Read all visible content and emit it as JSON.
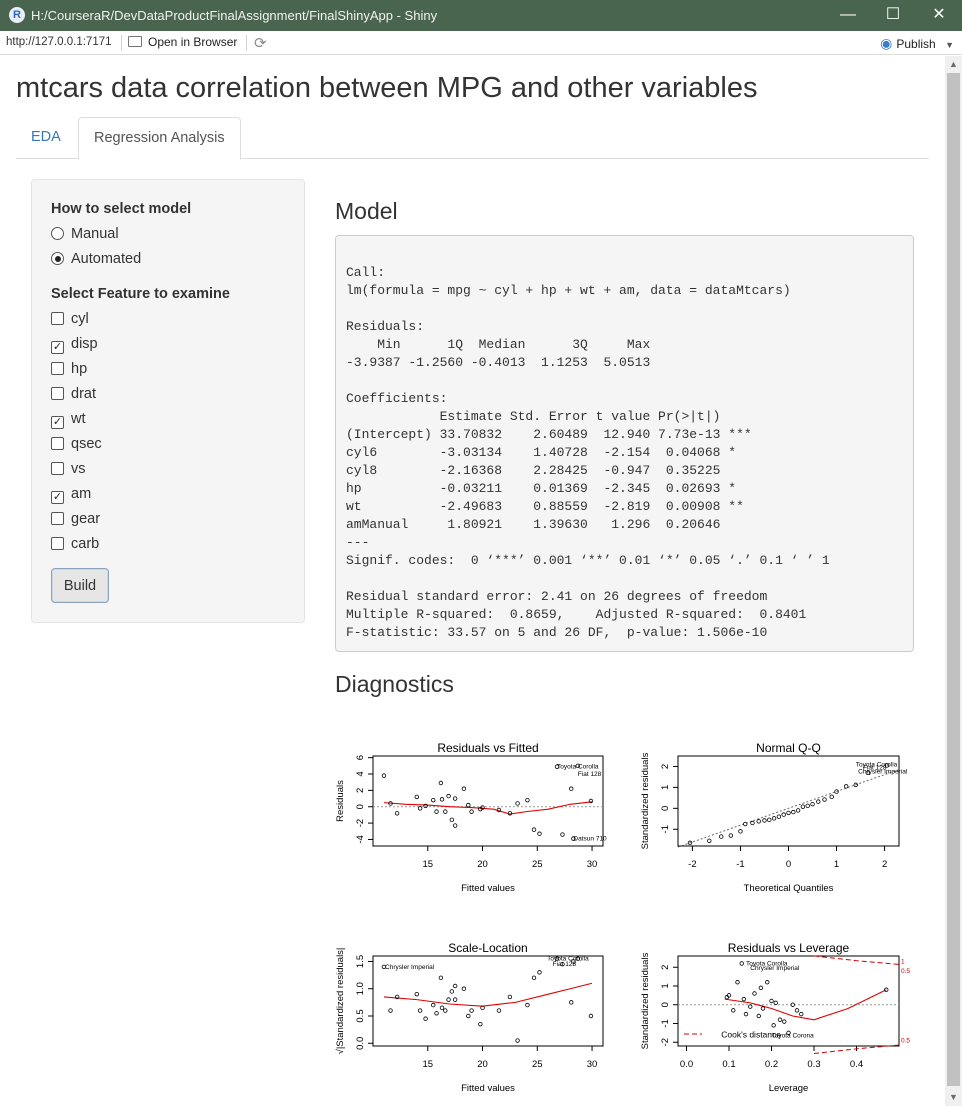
{
  "window": {
    "title": "H:/CourseraR/DevDataProductFinalAssignment/FinalShinyApp - Shiny",
    "logo": "R",
    "minimize": "—",
    "maximize": "☐",
    "close": "✕"
  },
  "toolbar": {
    "url": "http://127.0.0.1:7171",
    "open_browser": "Open in Browser",
    "publish": "Publish"
  },
  "page": {
    "title": "mtcars data correlation between MPG and other variables",
    "tabs": [
      {
        "label": "EDA",
        "active": false
      },
      {
        "label": "Regression Analysis",
        "active": true
      }
    ]
  },
  "sidebar": {
    "model_label": "How to select model",
    "model_options": [
      {
        "label": "Manual",
        "selected": false
      },
      {
        "label": "Automated",
        "selected": true
      }
    ],
    "feature_label": "Select Feature to examine",
    "features": [
      {
        "label": "cyl",
        "checked": false
      },
      {
        "label": "disp",
        "checked": true
      },
      {
        "label": "hp",
        "checked": false
      },
      {
        "label": "drat",
        "checked": false
      },
      {
        "label": "wt",
        "checked": true
      },
      {
        "label": "qsec",
        "checked": false
      },
      {
        "label": "vs",
        "checked": false
      },
      {
        "label": "am",
        "checked": true
      },
      {
        "label": "gear",
        "checked": false
      },
      {
        "label": "carb",
        "checked": false
      }
    ],
    "build_label": "Build"
  },
  "main": {
    "model_heading": "Model",
    "model_output": "\nCall:\nlm(formula = mpg ~ cyl + hp + wt + am, data = dataMtcars)\n\nResiduals:\n    Min      1Q  Median      3Q     Max \n-3.9387 -1.2560 -0.4013  1.1253  5.0513 \n\nCoefficients:\n            Estimate Std. Error t value Pr(>|t|)    \n(Intercept) 33.70832    2.60489  12.940 7.73e-13 ***\ncyl6        -3.03134    1.40728  -2.154  0.04068 *  \ncyl8        -2.16368    2.28425  -0.947  0.35225    \nhp          -0.03211    0.01369  -2.345  0.02693 *  \nwt          -2.49683    0.88559  -2.819  0.00908 ** \namManual     1.80921    1.39630   1.296  0.20646    \n---\nSignif. codes:  0 ‘***’ 0.001 ‘**’ 0.01 ‘*’ 0.05 ‘.’ 0.1 ‘ ’ 1\n\nResidual standard error: 2.41 on 26 degrees of freedom\nMultiple R-squared:  0.8659,\tAdjusted R-squared:  0.8401 \nF-statistic: 33.57 on 5 and 26 DF,  p-value: 1.506e-10",
    "diagnostics_heading": "Diagnostics"
  },
  "chart_data": [
    {
      "type": "scatter",
      "title": "Residuals vs Fitted",
      "xlabel": "Fitted values",
      "ylabel": "Residuals",
      "xlim": [
        10,
        31
      ],
      "ylim": [
        -4.8,
        6.2
      ],
      "xticks": [
        15,
        20,
        25,
        30
      ],
      "yticks": [
        -4,
        -2,
        0,
        2,
        4,
        6
      ],
      "hline": 0,
      "points": [
        [
          11,
          3.8
        ],
        [
          11.6,
          0.4
        ],
        [
          12.2,
          -0.8
        ],
        [
          14,
          1.2
        ],
        [
          14.3,
          -0.2
        ],
        [
          14.8,
          0.1
        ],
        [
          15.5,
          0.8
        ],
        [
          15.8,
          -0.6
        ],
        [
          16.2,
          2.9
        ],
        [
          16.3,
          0.9
        ],
        [
          16.6,
          -0.6
        ],
        [
          16.9,
          1.3
        ],
        [
          17.2,
          -1.6
        ],
        [
          17.5,
          -2.3
        ],
        [
          17.5,
          1
        ],
        [
          18.3,
          2.2
        ],
        [
          18.7,
          0.2
        ],
        [
          19,
          -0.6
        ],
        [
          19.8,
          -0.3
        ],
        [
          20,
          -0.1
        ],
        [
          21.5,
          -0.4
        ],
        [
          22.5,
          -0.8
        ],
        [
          23.2,
          0.4
        ],
        [
          24.1,
          0.8
        ],
        [
          24.7,
          -2.8
        ],
        [
          25.2,
          -3.3
        ],
        [
          26.8,
          4.9
        ],
        [
          27.3,
          -3.4
        ],
        [
          28.1,
          2.2
        ],
        [
          28.3,
          -3.9
        ],
        [
          28.7,
          5
        ],
        [
          29.9,
          0.7
        ]
      ],
      "smooth": [
        [
          11,
          0.5
        ],
        [
          13,
          0.3
        ],
        [
          15,
          0.2
        ],
        [
          17,
          0
        ],
        [
          19,
          -0.1
        ],
        [
          21,
          -0.3
        ],
        [
          22.5,
          -0.9
        ],
        [
          24,
          -0.6
        ],
        [
          26,
          -0.3
        ],
        [
          28,
          0.3
        ],
        [
          30,
          0.6
        ]
      ],
      "labels": [
        {
          "text": "Toyota Corolla",
          "at": [
            26.8,
            4.9
          ]
        },
        {
          "text": "Fiat 128",
          "at": [
            28.7,
            4.0
          ]
        },
        {
          "text": "Datsun 710",
          "at": [
            28.3,
            -3.9
          ]
        }
      ]
    },
    {
      "type": "scatter",
      "title": "Normal Q-Q",
      "xlabel": "Theoretical Quantiles",
      "ylabel": "Standardized residuals",
      "xlim": [
        -2.3,
        2.3
      ],
      "ylim": [
        -1.8,
        2.5
      ],
      "xticks": [
        -2,
        -1,
        0,
        1,
        2
      ],
      "yticks": [
        -1,
        0,
        1,
        2
      ],
      "refline": [
        [
          -2.3,
          -1.85
        ],
        [
          2.3,
          1.85
        ]
      ],
      "points": [
        [
          -2.05,
          -1.65
        ],
        [
          -1.65,
          -1.55
        ],
        [
          -1.4,
          -1.35
        ],
        [
          -1.2,
          -1.3
        ],
        [
          -1.0,
          -1.1
        ],
        [
          -0.9,
          -0.75
        ],
        [
          -0.75,
          -0.7
        ],
        [
          -0.62,
          -0.62
        ],
        [
          -0.5,
          -0.58
        ],
        [
          -0.4,
          -0.55
        ],
        [
          -0.3,
          -0.48
        ],
        [
          -0.2,
          -0.4
        ],
        [
          -0.1,
          -0.3
        ],
        [
          0,
          -0.22
        ],
        [
          0.1,
          -0.18
        ],
        [
          0.2,
          -0.1
        ],
        [
          0.3,
          0.08
        ],
        [
          0.4,
          0.12
        ],
        [
          0.5,
          0.2
        ],
        [
          0.62,
          0.32
        ],
        [
          0.75,
          0.42
        ],
        [
          0.9,
          0.55
        ],
        [
          1.0,
          0.8
        ],
        [
          1.2,
          1.05
        ],
        [
          1.4,
          1.12
        ],
        [
          1.65,
          1.7
        ],
        [
          2.05,
          2.05
        ]
      ],
      "labels": [
        {
          "text": "Toyota Corolla",
          "at": [
            1.4,
            2.1
          ]
        },
        {
          "text": "Fiat 128",
          "at": [
            1.55,
            1.95
          ]
        },
        {
          "text": "Chrysler Imperial",
          "at": [
            1.45,
            1.75
          ]
        }
      ]
    },
    {
      "type": "scatter",
      "title": "Scale-Location",
      "xlabel": "Fitted values",
      "ylabel": "√|Standardized residuals|",
      "xlim": [
        10,
        31
      ],
      "ylim": [
        -0.05,
        1.6
      ],
      "xticks": [
        15,
        20,
        25,
        30
      ],
      "yticks": [
        0.0,
        0.5,
        1.0,
        1.5
      ],
      "points": [
        [
          11,
          1.4
        ],
        [
          11.6,
          0.6
        ],
        [
          12.2,
          0.85
        ],
        [
          14,
          0.9
        ],
        [
          14.3,
          0.6
        ],
        [
          14.8,
          0.45
        ],
        [
          15.5,
          0.7
        ],
        [
          15.8,
          0.55
        ],
        [
          16.2,
          1.2
        ],
        [
          16.3,
          0.65
        ],
        [
          16.6,
          0.6
        ],
        [
          16.9,
          0.8
        ],
        [
          17.2,
          0.95
        ],
        [
          17.5,
          1.05
        ],
        [
          17.5,
          0.8
        ],
        [
          18.3,
          1.0
        ],
        [
          18.7,
          0.5
        ],
        [
          19,
          0.6
        ],
        [
          19.8,
          0.35
        ],
        [
          20,
          0.65
        ],
        [
          21.5,
          0.6
        ],
        [
          22.5,
          0.85
        ],
        [
          23.2,
          0.05
        ],
        [
          24.1,
          0.7
        ],
        [
          24.7,
          1.2
        ],
        [
          25.2,
          1.3
        ],
        [
          26.8,
          1.55
        ],
        [
          27.3,
          1.45
        ],
        [
          28.1,
          0.75
        ],
        [
          28.3,
          1.5
        ],
        [
          28.7,
          1.55
        ],
        [
          29.9,
          0.5
        ]
      ],
      "smooth": [
        [
          11,
          0.85
        ],
        [
          14,
          0.8
        ],
        [
          17,
          0.72
        ],
        [
          20,
          0.68
        ],
        [
          23,
          0.75
        ],
        [
          26,
          0.9
        ],
        [
          28,
          1.0
        ],
        [
          30,
          1.1
        ]
      ],
      "labels": [
        {
          "text": "Chrysler Imperial",
          "at": [
            11.1,
            1.4
          ]
        },
        {
          "text": "Toyota Corolla",
          "at": [
            25.9,
            1.55
          ]
        },
        {
          "text": "Fiat 128",
          "at": [
            26.4,
            1.45
          ]
        }
      ]
    },
    {
      "type": "scatter",
      "title": "Residuals vs Leverage",
      "xlabel": "Leverage",
      "ylabel": "Standardized residuals",
      "xlim": [
        -0.02,
        0.5
      ],
      "ylim": [
        -2.2,
        2.6
      ],
      "xticks": [
        0.0,
        0.1,
        0.2,
        0.3,
        0.4
      ],
      "yticks": [
        -2,
        -1,
        0,
        1,
        2
      ],
      "hline": 0,
      "points": [
        [
          0.095,
          0.4
        ],
        [
          0.1,
          0.5
        ],
        [
          0.11,
          -0.3
        ],
        [
          0.12,
          1.2
        ],
        [
          0.13,
          2.2
        ],
        [
          0.135,
          0.3
        ],
        [
          0.14,
          -0.5
        ],
        [
          0.15,
          -0.1
        ],
        [
          0.16,
          0.6
        ],
        [
          0.17,
          -0.6
        ],
        [
          0.175,
          0.9
        ],
        [
          0.18,
          -0.2
        ],
        [
          0.19,
          1.2
        ],
        [
          0.2,
          0.2
        ],
        [
          0.205,
          -1.1
        ],
        [
          0.21,
          0.1
        ],
        [
          0.22,
          -0.8
        ],
        [
          0.23,
          -0.9
        ],
        [
          0.24,
          -1.5
        ],
        [
          0.25,
          0.0
        ],
        [
          0.26,
          -0.3
        ],
        [
          0.27,
          -0.5
        ],
        [
          0.47,
          0.8
        ]
      ],
      "smooth": [
        [
          0.09,
          0.3
        ],
        [
          0.15,
          0.1
        ],
        [
          0.2,
          -0.2
        ],
        [
          0.25,
          -0.6
        ],
        [
          0.3,
          -0.8
        ],
        [
          0.38,
          -0.2
        ],
        [
          0.47,
          0.8
        ]
      ],
      "cooks_upper": [
        [
          0.3,
          2.6
        ],
        [
          0.4,
          2.35
        ],
        [
          0.5,
          2.15
        ]
      ],
      "cooks_lower": [
        [
          0.3,
          -2.6
        ],
        [
          0.4,
          -2.35
        ],
        [
          0.5,
          -2.15
        ]
      ],
      "labels": [
        {
          "text": "Toyota Corolla",
          "at": [
            0.14,
            2.2
          ]
        },
        {
          "text": "Chrysler Imperial",
          "at": [
            0.15,
            1.95
          ]
        },
        {
          "text": "Toyota Corona",
          "at": [
            0.2,
            -1.65
          ]
        },
        {
          "text": "Cook's distance",
          "at": [
            0.03,
            -1.65
          ]
        },
        {
          "text": "1",
          "at": [
            0.5,
            2.3
          ],
          "edge": true
        },
        {
          "text": "0.5",
          "at": [
            0.5,
            1.8
          ],
          "edge": true
        },
        {
          "text": "0.5",
          "at": [
            0.5,
            -1.9
          ],
          "edge": true
        }
      ]
    }
  ]
}
